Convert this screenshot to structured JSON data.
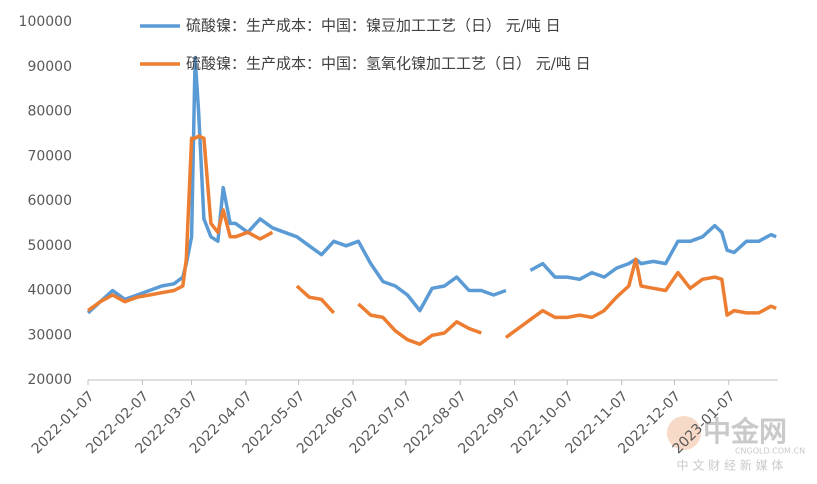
{
  "chart_data": {
    "type": "line",
    "series": [
      {
        "name": "硫酸镍：生产成本：中国：镍豆加工工艺（日） 元/吨 日",
        "color": "#5b9bd5",
        "values": [
          35000,
          37500,
          40000,
          38000,
          39000,
          40000,
          41000,
          41500,
          43000,
          46000,
          52000,
          92000,
          80000,
          56000,
          52000,
          51000,
          63000,
          55000,
          55000,
          53000,
          56000,
          54000,
          53000,
          52000,
          50000,
          48000,
          51000,
          50000,
          51000,
          46000,
          42000,
          41000,
          39000,
          35500,
          40500,
          41000,
          43000,
          40000,
          40000,
          39000,
          40000,
          null,
          44500,
          46000,
          43000,
          43000,
          42500,
          44000,
          43000,
          45000,
          46000,
          47000,
          46000,
          46500,
          46000,
          51000,
          51000,
          52000,
          54500,
          53000,
          49000,
          48500,
          51000,
          51000,
          52500,
          52000
        ]
      },
      {
        "name": "硫酸镍：生产成本：中国：氢氧化镍加工工艺（日） 元/吨 日",
        "color": "#ed7d31",
        "values": [
          35500,
          37500,
          39000,
          37500,
          38500,
          39000,
          39500,
          40000,
          41000,
          47000,
          74000,
          74000,
          74500,
          74000,
          55000,
          53000,
          58000,
          52000,
          52000,
          53000,
          51500,
          53000,
          null,
          41000,
          38500,
          38000,
          35000,
          null,
          37000,
          34500,
          34000,
          31000,
          29000,
          28000,
          30000,
          30500,
          33000,
          31500,
          30500,
          null,
          29500,
          31500,
          33500,
          35500,
          34000,
          34000,
          34500,
          34000,
          35500,
          38500,
          41000,
          47000,
          41000,
          40500,
          40000,
          44000,
          40500,
          42500,
          43000,
          42500,
          34500,
          35500,
          35000,
          35000,
          36500,
          36000
        ]
      }
    ],
    "x": [
      "2022-01-07",
      "2022-01-14",
      "2022-01-21",
      "2022-01-28",
      "2022-02-04",
      "2022-02-11",
      "2022-02-18",
      "2022-02-25",
      "2022-03-02",
      "2022-03-04",
      "2022-03-07",
      "2022-03-09",
      "2022-03-11",
      "2022-03-14",
      "2022-03-18",
      "2022-03-22",
      "2022-03-25",
      "2022-03-29",
      "2022-04-01",
      "2022-04-08",
      "2022-04-15",
      "2022-04-22",
      "2022-04-29",
      "2022-05-06",
      "2022-05-13",
      "2022-05-20",
      "2022-05-27",
      "2022-06-03",
      "2022-06-10",
      "2022-06-17",
      "2022-06-24",
      "2022-07-01",
      "2022-07-08",
      "2022-07-15",
      "2022-07-22",
      "2022-07-29",
      "2022-08-05",
      "2022-08-12",
      "2022-08-19",
      "2022-08-26",
      "2022-09-02",
      "2022-09-09",
      "2022-09-16",
      "2022-09-23",
      "2022-09-30",
      "2022-10-07",
      "2022-10-14",
      "2022-10-21",
      "2022-10-28",
      "2022-11-04",
      "2022-11-11",
      "2022-11-15",
      "2022-11-18",
      "2022-11-25",
      "2022-12-02",
      "2022-12-09",
      "2022-12-16",
      "2022-12-23",
      "2022-12-30",
      "2023-01-03",
      "2023-01-06",
      "2023-01-10",
      "2023-01-17",
      "2023-01-24",
      "2023-01-31",
      "2023-02-03"
    ],
    "xlim": [
      "2022-01-07",
      "2023-02-04"
    ],
    "xticks": [
      "2022-01-07",
      "2022-02-07",
      "2022-03-07",
      "2022-04-07",
      "2022-05-07",
      "2022-06-07",
      "2022-07-07",
      "2022-08-07",
      "2022-09-07",
      "2022-10-07",
      "2022-11-07",
      "2022-12-07",
      "2023-01-07"
    ],
    "ylim": [
      20000,
      100000
    ],
    "yticks": [
      20000,
      30000,
      40000,
      50000,
      60000,
      70000,
      80000,
      90000,
      100000
    ],
    "grid": false,
    "legend": "top",
    "annotations": [
      "中金网",
      "CNGOLD.COM.CN",
      "中 文 财 经 新 媒 体"
    ]
  }
}
